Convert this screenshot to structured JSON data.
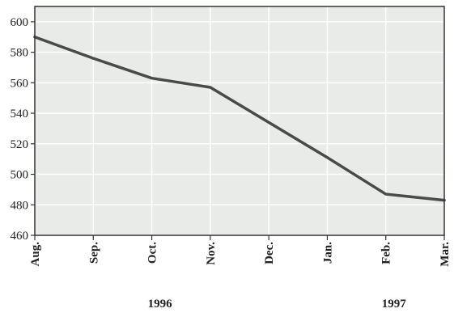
{
  "chart_data": {
    "type": "line",
    "categories": [
      "Aug.",
      "Sep.",
      "Oct.",
      "Nov.",
      "Dec.",
      "Jan.",
      "Feb.",
      "Mar."
    ],
    "series": [
      {
        "values": [
          590,
          576,
          563,
          557,
          534,
          511,
          487,
          483
        ]
      }
    ],
    "ylim": [
      460,
      610
    ],
    "yticks": [
      460,
      480,
      500,
      520,
      540,
      560,
      580,
      600
    ],
    "grid": true,
    "year_labels": [
      {
        "text": "1996",
        "category": "Oct."
      },
      {
        "text": "1997",
        "category": "Feb."
      }
    ],
    "colors": {
      "plot_background": "#e9ebe9",
      "grid": "#ffffff",
      "line": "#4a4a4a",
      "frame": "#333333"
    }
  }
}
